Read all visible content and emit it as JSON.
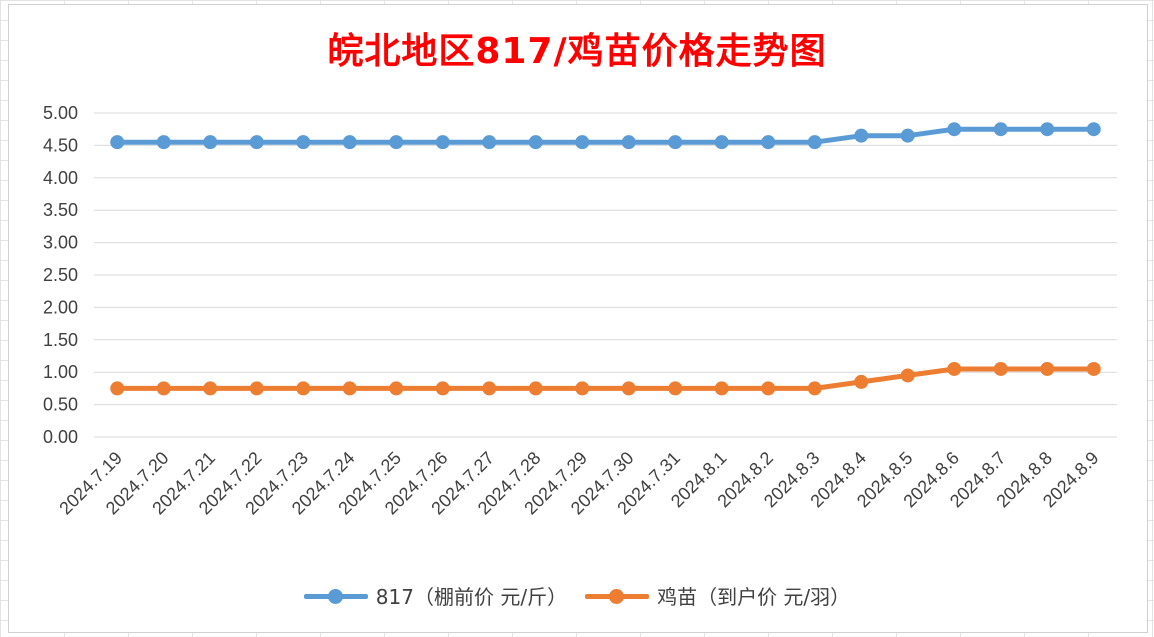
{
  "title": "皖北地区817/鸡苗价格走势图",
  "colors": {
    "title": "#ff0000",
    "series_817": "#5b9bd5",
    "series_chick": "#ed7d31",
    "grid": "#d9d9d9",
    "text": "#404040"
  },
  "legend": {
    "items": [
      {
        "label": "817（棚前价 元/斤）",
        "color": "#5b9bd5"
      },
      {
        "label": "鸡苗（到户价 元/羽）",
        "color": "#ed7d31"
      }
    ]
  },
  "chart_data": {
    "type": "line",
    "title": "皖北地区817/鸡苗价格走势图",
    "xlabel": "",
    "ylabel": "",
    "ylim": [
      0,
      5
    ],
    "ytick_labels": [
      "0.00",
      "0.50",
      "1.00",
      "1.50",
      "2.00",
      "2.50",
      "3.00",
      "3.50",
      "4.00",
      "4.50",
      "5.00"
    ],
    "grid": true,
    "legend_position": "bottom",
    "categories": [
      "2024.7.19",
      "2024.7.20",
      "2024.7.21",
      "2024.7.22",
      "2024.7.23",
      "2024.7.24",
      "2024.7.25",
      "2024.7.26",
      "2024.7.27",
      "2024.7.28",
      "2024.7.29",
      "2024.7.30",
      "2024.7.31",
      "2024.8.1",
      "2024.8.2",
      "2024.8.3",
      "2024.8.4",
      "2024.8.5",
      "2024.8.6",
      "2024.8.7",
      "2024.8.8",
      "2024.8.9"
    ],
    "series": [
      {
        "name": "817（棚前价 元/斤）",
        "color": "#5b9bd5",
        "values": [
          4.55,
          4.55,
          4.55,
          4.55,
          4.55,
          4.55,
          4.55,
          4.55,
          4.55,
          4.55,
          4.55,
          4.55,
          4.55,
          4.55,
          4.55,
          4.55,
          4.65,
          4.65,
          4.75,
          4.75,
          4.75,
          4.75
        ]
      },
      {
        "name": "鸡苗（到户价 元/羽）",
        "color": "#ed7d31",
        "values": [
          0.75,
          0.75,
          0.75,
          0.75,
          0.75,
          0.75,
          0.75,
          0.75,
          0.75,
          0.75,
          0.75,
          0.75,
          0.75,
          0.75,
          0.75,
          0.75,
          0.85,
          0.95,
          1.05,
          1.05,
          1.05,
          1.05
        ]
      }
    ]
  }
}
